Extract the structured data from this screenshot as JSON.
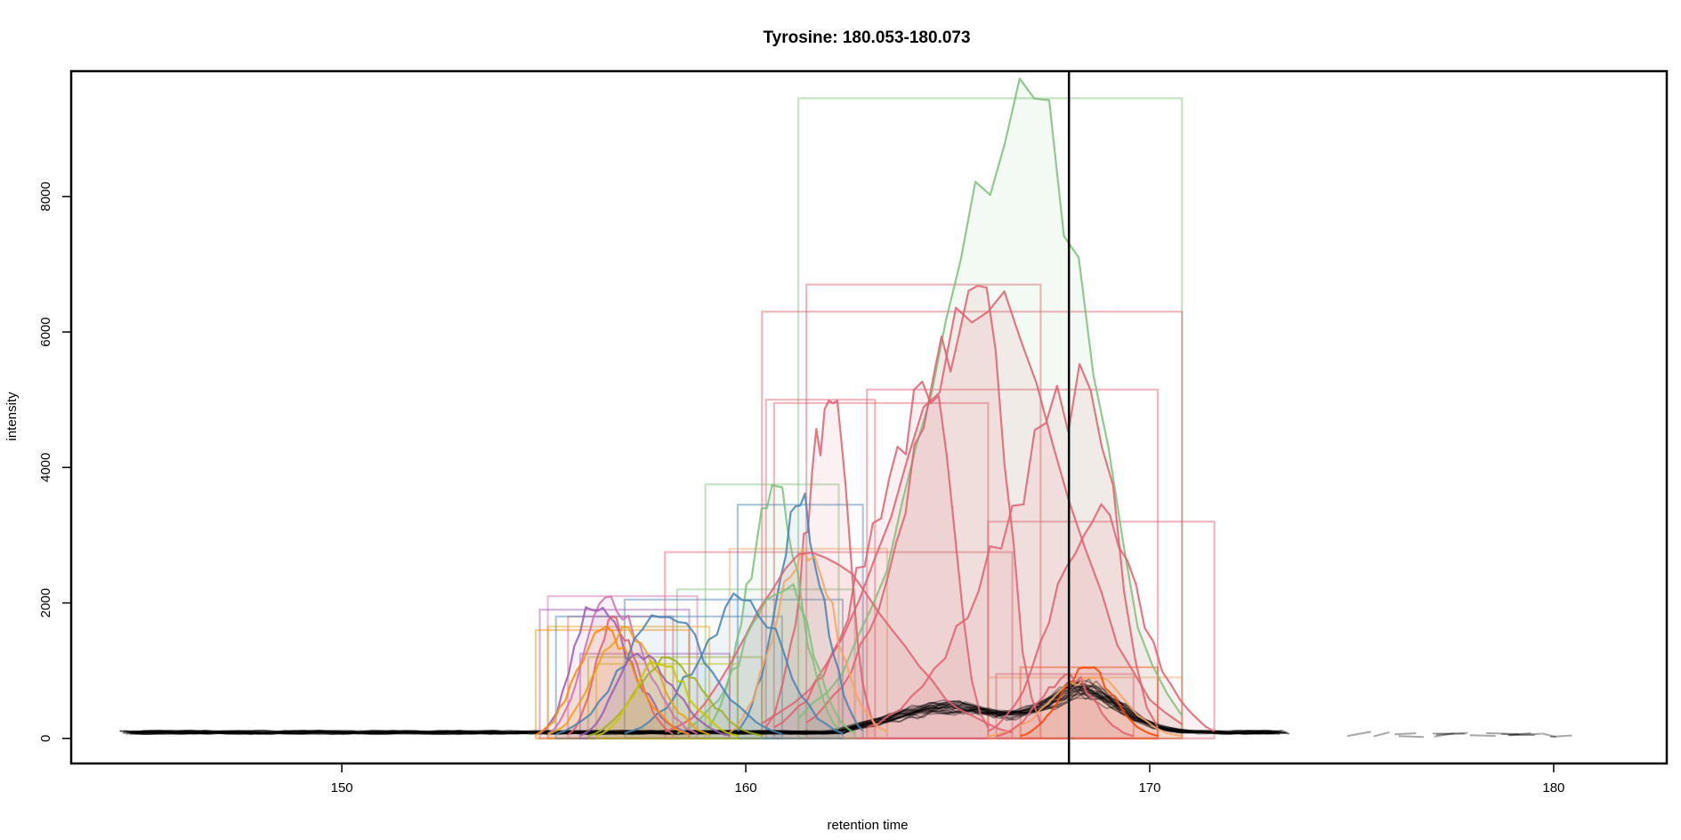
{
  "chart_data": {
    "type": "line",
    "title": "Tyrosine: 180.053-180.073",
    "xlabel": "retention time",
    "ylabel": "intensity",
    "xlim": [
      143.3,
      182.8
    ],
    "ylim": [
      -370,
      9850
    ],
    "x_ticks": [
      150,
      160,
      170,
      180
    ],
    "y_ticks": [
      0,
      2000,
      4000,
      6000,
      8000
    ],
    "grid": false,
    "legend": "none",
    "vline": 168.0,
    "vline_color": "#000000",
    "peaks": [
      {
        "color": "#7fbf7b",
        "rt_min": 161.3,
        "rt_max": 170.8,
        "apex_rt": 167.1,
        "into": 9450
      },
      {
        "color": "#e06070",
        "rt_min": 161.5,
        "rt_max": 167.3,
        "apex_rt": 165.9,
        "into": 6700
      },
      {
        "color": "#e06070",
        "rt_min": 160.4,
        "rt_max": 170.8,
        "apex_rt": 166.0,
        "into": 6300
      },
      {
        "color": "#e06070",
        "rt_min": 160.7,
        "rt_max": 166.0,
        "apex_rt": 164.6,
        "into": 4950
      },
      {
        "color": "#e06070",
        "rt_min": 163.0,
        "rt_max": 170.2,
        "apex_rt": 168.5,
        "into": 5150
      },
      {
        "color": "#e06070",
        "rt_min": 160.5,
        "rt_max": 163.2,
        "apex_rt": 162.1,
        "into": 5000
      },
      {
        "color": "#e06070",
        "rt_min": 166.0,
        "rt_max": 171.6,
        "apex_rt": 168.6,
        "into": 3200
      },
      {
        "color": "#7fbf7b",
        "rt_min": 159.0,
        "rt_max": 162.3,
        "apex_rt": 160.7,
        "into": 3750
      },
      {
        "color": "#4682b4",
        "rt_min": 159.8,
        "rt_max": 162.9,
        "apex_rt": 161.3,
        "into": 3450
      },
      {
        "color": "#f4a460",
        "rt_min": 159.6,
        "rt_max": 163.5,
        "apex_rt": 161.4,
        "into": 2800
      },
      {
        "color": "#e06070",
        "rt_min": 158.0,
        "rt_max": 166.6,
        "apex_rt": 161.5,
        "into": 2750
      },
      {
        "color": "#7fbf7b",
        "rt_min": 158.3,
        "rt_max": 162.7,
        "apex_rt": 161.0,
        "into": 2200
      },
      {
        "color": "#4682b4",
        "rt_min": 157.0,
        "rt_max": 162.4,
        "apex_rt": 160.0,
        "into": 2050
      },
      {
        "color": "#d070b0",
        "rt_min": 155.1,
        "rt_max": 158.8,
        "apex_rt": 156.6,
        "into": 2100
      },
      {
        "color": "#9b59b6",
        "rt_min": 154.9,
        "rt_max": 158.6,
        "apex_rt": 156.2,
        "into": 1900
      },
      {
        "color": "#e06070",
        "rt_min": 155.6,
        "rt_max": 158.2,
        "apex_rt": 156.7,
        "into": 1800
      },
      {
        "color": "#e8a317",
        "rt_min": 155.1,
        "rt_max": 159.1,
        "apex_rt": 157.0,
        "into": 1650
      },
      {
        "color": "#ff8c00",
        "rt_min": 154.8,
        "rt_max": 158.6,
        "apex_rt": 156.4,
        "into": 1600
      },
      {
        "color": "#4682b4",
        "rt_min": 155.3,
        "rt_max": 160.9,
        "apex_rt": 158.0,
        "into": 1800
      },
      {
        "color": "#9b59b6",
        "rt_min": 155.9,
        "rt_max": 159.6,
        "apex_rt": 157.3,
        "into": 1250
      },
      {
        "color": "#a0b020",
        "rt_min": 156.1,
        "rt_max": 160.4,
        "apex_rt": 158.0,
        "into": 1200
      },
      {
        "color": "#c8c800",
        "rt_min": 156.3,
        "rt_max": 159.8,
        "apex_rt": 157.8,
        "into": 1100
      },
      {
        "color": "#f4a460",
        "rt_min": 166.0,
        "rt_max": 170.8,
        "apex_rt": 168.5,
        "into": 900
      },
      {
        "color": "#ff4500",
        "rt_min": 166.8,
        "rt_max": 170.2,
        "apex_rt": 168.4,
        "into": 1050
      },
      {
        "color": "#e06070",
        "rt_min": 166.2,
        "rt_max": 169.6,
        "apex_rt": 168.0,
        "into": 950
      }
    ],
    "noise_color": "#000000"
  }
}
